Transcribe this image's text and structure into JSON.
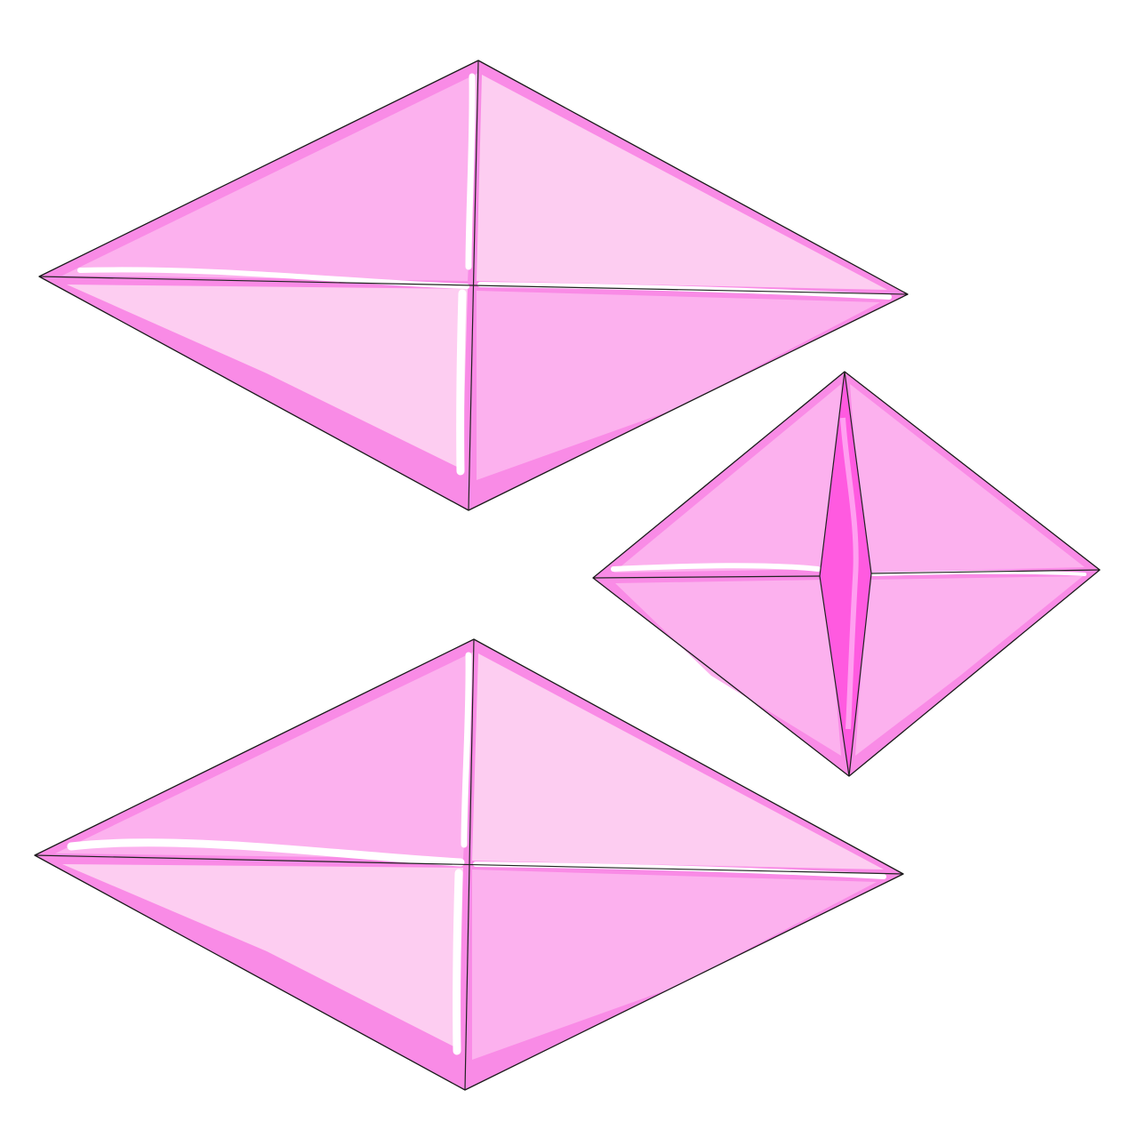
{
  "image": {
    "background": "#ffffff",
    "palette": {
      "facet_light": "#fdcdf1",
      "facet_mid": "#fcb1ee",
      "facet_rim": "#f98be6",
      "facet_deep": "#ff5ae0",
      "outline": "#1a1a1a",
      "highlight": "#ffffff"
    },
    "objects": [
      {
        "name": "pink-gem-top-left",
        "shape": "four-facet diamond"
      },
      {
        "name": "pink-gem-bottom-left",
        "shape": "four-facet diamond"
      },
      {
        "name": "pink-gem-right",
        "shape": "four-facet diamond with center ridge"
      }
    ]
  }
}
